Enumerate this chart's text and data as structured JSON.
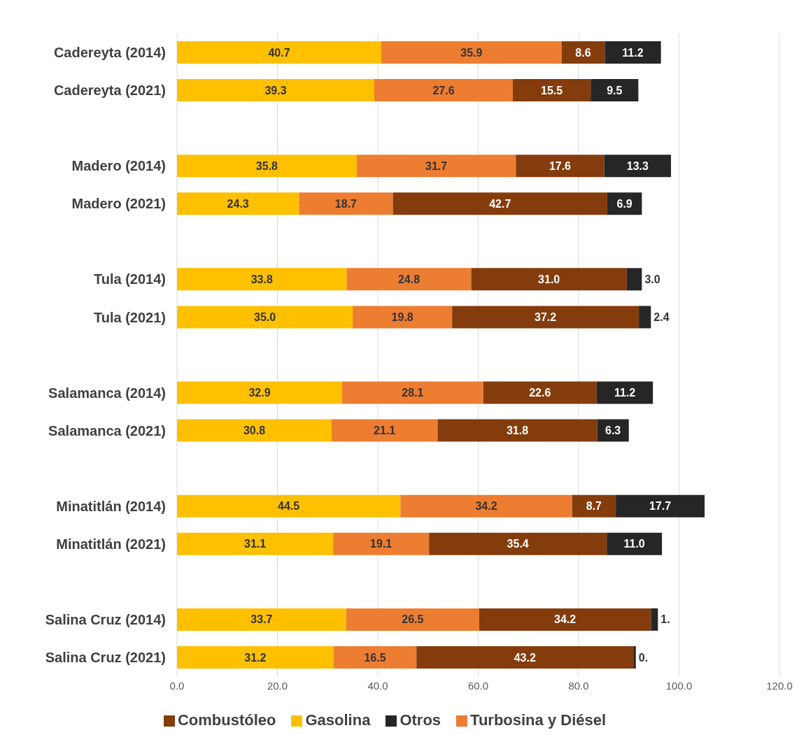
{
  "chart_data": {
    "type": "bar",
    "orientation": "horizontal",
    "stacked": true,
    "grid": "x",
    "legend": "bottom",
    "categories": [
      "Cadereyta (2014)",
      "Cadereyta (2021)",
      null,
      "Madero (2014)",
      "Madero (2021)",
      null,
      "Tula (2014)",
      "Tula (2021)",
      null,
      "Salamanca (2014)",
      "Salamanca (2021)",
      null,
      "Minatitlán (2014)",
      "Minatitlán (2021)",
      null,
      "Salina Cruz (2014)",
      "Salina Cruz (2021)"
    ],
    "xlim": [
      0,
      120
    ],
    "xticks": [
      {
        "value": 0,
        "label": "0.0"
      },
      {
        "value": 20,
        "label": "20.0"
      },
      {
        "value": 40,
        "label": "40.0"
      },
      {
        "value": 60,
        "label": "60.0"
      },
      {
        "value": 80,
        "label": "80.0"
      },
      {
        "value": 100,
        "label": "100.0"
      },
      {
        "value": 120,
        "label": "120.0"
      }
    ],
    "series": [
      {
        "name": "Gasolina",
        "color": "#ffc000",
        "values": [
          40.7,
          39.3,
          null,
          35.8,
          24.3,
          null,
          33.8,
          35.0,
          null,
          32.9,
          30.8,
          null,
          44.5,
          31.1,
          null,
          33.7,
          31.2
        ],
        "value_labels": [
          "40.7",
          "39.3",
          null,
          "35.8",
          "24.3",
          null,
          "33.8",
          "35.0",
          null,
          "32.9",
          "30.8",
          null,
          "44.5",
          "31.1",
          null,
          "33.7",
          "31.2"
        ]
      },
      {
        "name": "Turbosina y Diésel",
        "color": "#ed7d31",
        "values": [
          35.9,
          27.6,
          null,
          31.7,
          18.7,
          null,
          24.8,
          19.8,
          null,
          28.1,
          21.1,
          null,
          34.2,
          19.1,
          null,
          26.5,
          16.5
        ],
        "value_labels": [
          "35.9",
          "27.6",
          null,
          "31.7",
          "18.7",
          null,
          "24.8",
          "19.8",
          null,
          "28.1",
          "21.1",
          null,
          "34.2",
          "19.1",
          null,
          "26.5",
          "16.5"
        ]
      },
      {
        "name": "Combustóleo",
        "color": "#843c0c",
        "values": [
          8.6,
          15.5,
          null,
          17.6,
          42.7,
          null,
          31.0,
          37.2,
          null,
          22.6,
          31.8,
          null,
          8.7,
          35.4,
          null,
          34.2,
          43.2
        ],
        "value_labels": [
          "8.6",
          "15.5",
          null,
          "17.6",
          "42.7",
          null,
          "31.0",
          "37.2",
          null,
          "22.6",
          "31.8",
          null,
          "8.7",
          "35.4",
          null,
          "34.2",
          "43.2"
        ]
      },
      {
        "name": "Otros",
        "color": "#262626",
        "values": [
          11.2,
          9.5,
          null,
          13.3,
          6.9,
          null,
          3.0,
          2.4,
          null,
          11.2,
          6.3,
          null,
          17.7,
          11.0,
          null,
          1.4,
          0.5
        ],
        "value_labels": [
          "11.2",
          "9.5",
          null,
          "13.3",
          "6.9",
          null,
          "3.0",
          "2.4",
          null,
          "11.2",
          "6.3",
          null,
          "17.7",
          "11.0",
          null,
          "1.",
          "0."
        ]
      }
    ]
  }
}
